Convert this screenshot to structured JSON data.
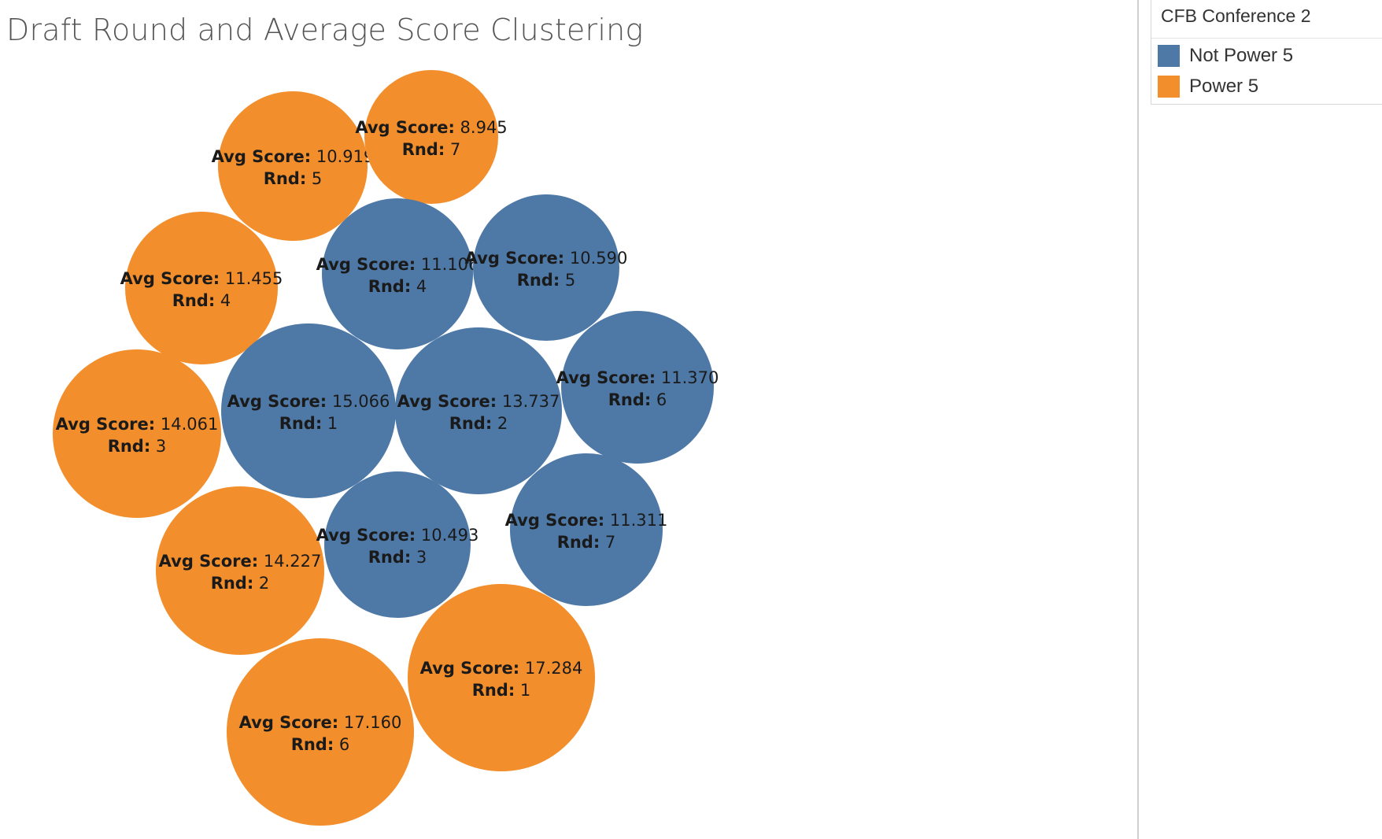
{
  "chart_data": {
    "type": "packed-bubble",
    "title": "Draft Round and Average Score Clustering",
    "label_prefixes": {
      "score": "Avg Score:",
      "round": "Rnd:"
    },
    "legend": {
      "title": "CFB Conference 2",
      "entries": [
        {
          "name": "Not Power 5",
          "color": "#4e79a7"
        },
        {
          "name": "Power 5",
          "color": "#f28e2b"
        }
      ]
    },
    "bubbles": [
      {
        "group": "Power 5",
        "round": 1,
        "avg_score": "17.284"
      },
      {
        "group": "Power 5",
        "round": 2,
        "avg_score": "14.227"
      },
      {
        "group": "Power 5",
        "round": 3,
        "avg_score": "14.061"
      },
      {
        "group": "Power 5",
        "round": 4,
        "avg_score": "11.455"
      },
      {
        "group": "Power 5",
        "round": 5,
        "avg_score": "10.919"
      },
      {
        "group": "Power 5",
        "round": 6,
        "avg_score": "17.160"
      },
      {
        "group": "Power 5",
        "round": 7,
        "avg_score": "8.945"
      },
      {
        "group": "Not Power 5",
        "round": 1,
        "avg_score": "15.066"
      },
      {
        "group": "Not Power 5",
        "round": 2,
        "avg_score": "13.737"
      },
      {
        "group": "Not Power 5",
        "round": 3,
        "avg_score": "10.493"
      },
      {
        "group": "Not Power 5",
        "round": 4,
        "avg_score": "11.106"
      },
      {
        "group": "Not Power 5",
        "round": 5,
        "avg_score": "10.590"
      },
      {
        "group": "Not Power 5",
        "round": 6,
        "avg_score": "11.370"
      },
      {
        "group": "Not Power 5",
        "round": 7,
        "avg_score": "11.311"
      }
    ]
  }
}
